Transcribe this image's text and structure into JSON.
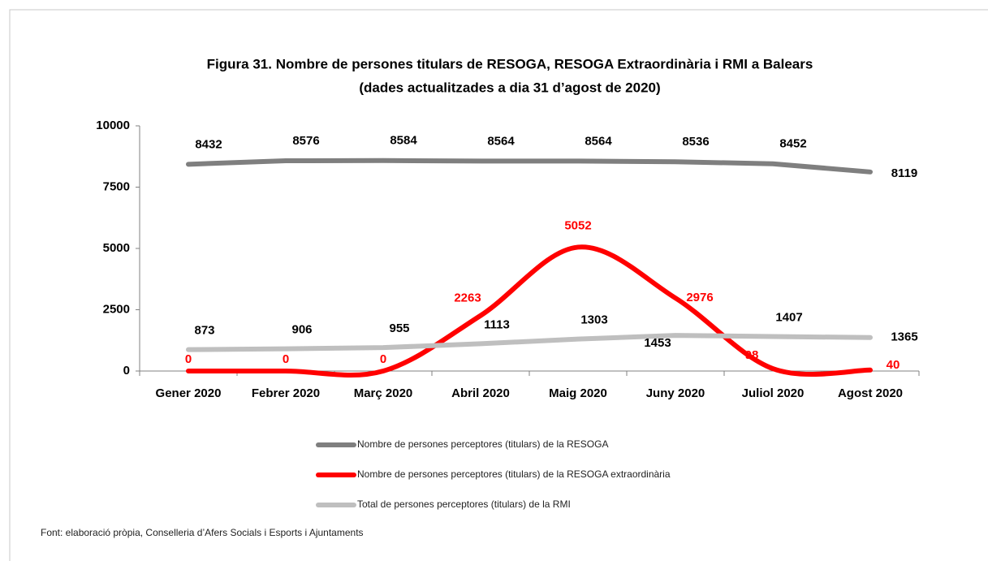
{
  "chart_data": {
    "type": "line",
    "title": [
      "Figura 31. Nombre de persones titulars de RESOGA, RESOGA  Extraordinària i RMI a Balears",
      "(dades actualitzades a dia 31 d’agost de 2020)"
    ],
    "categories": [
      "Gener 2020",
      "Febrer 2020",
      "Març 2020",
      "Abril 2020",
      "Maig 2020",
      "Juny 2020",
      "Juliol 2020",
      "Agost 2020"
    ],
    "series": [
      {
        "name": "Nombre de persones perceptores (titulars) de la RESOGA",
        "color": "#7f7f7f",
        "label_color": "#000000",
        "smooth": false,
        "values": [
          8432,
          8576,
          8584,
          8564,
          8564,
          8536,
          8452,
          8119
        ]
      },
      {
        "name": "Nombre de persones perceptores (titulars) de la RESOGA extraordinària",
        "color": "#ff0000",
        "label_color": "#ff0000",
        "smooth": true,
        "values": [
          0,
          0,
          0,
          2263,
          5052,
          2976,
          98,
          40
        ]
      },
      {
        "name": "Total de persones perceptores (titulars) de la RMI",
        "color": "#bfbfbf",
        "label_color": "#000000",
        "smooth": false,
        "values": [
          873,
          906,
          955,
          1113,
          1303,
          1453,
          1407,
          1365
        ]
      }
    ],
    "ylim": [
      0,
      10000
    ],
    "yticks": [
      0,
      2500,
      5000,
      7500,
      10000
    ],
    "grid": false,
    "legend": "bottom",
    "source": "Font: elaboració pròpia, Conselleria d’Afers Socials i Esports i Ajuntaments"
  }
}
